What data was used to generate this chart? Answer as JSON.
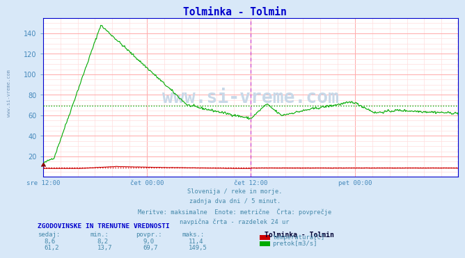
{
  "title": "Tolminka - Tolmin",
  "title_color": "#0000cc",
  "bg_color": "#d8e8f8",
  "plot_bg_color": "#ffffff",
  "grid_color_major": "#ffaaaa",
  "grid_color_minor": "#ffdddd",
  "x_labels": [
    "sre 12:00",
    "čet 00:00",
    "čet 12:00",
    "pet 00:00"
  ],
  "x_label_color": "#4488bb",
  "y_ticks": [
    20,
    40,
    60,
    80,
    100,
    120,
    140
  ],
  "ylim": [
    0,
    155
  ],
  "avg_line_value_green": 69.7,
  "avg_line_value_red": 9.0,
  "subtitle_lines": [
    "Slovenija / reke in morje.",
    "zadnja dva dni / 5 minut.",
    "Meritve: maksimalne  Enote: metrične  Črta: povprečje",
    "navpična črta - razdelek 24 ur"
  ],
  "subtitle_color": "#4488aa",
  "footer_header": "ZGODOVINSKE IN TRENUTNE VREDNOSTI",
  "footer_header_color": "#0000cc",
  "footer_cols": [
    "sedaj:",
    "min.:",
    "povpr.:",
    "maks.:"
  ],
  "footer_col_color": "#4488aa",
  "temp_row": [
    "8,6",
    "8,2",
    "9,0",
    "11,4"
  ],
  "flow_row": [
    "61,2",
    "13,7",
    "69,7",
    "149,5"
  ],
  "temp_label": "temperatura[C]",
  "flow_label": "pretok[m3/s]",
  "temp_color": "#cc0000",
  "flow_color": "#00aa00",
  "station_label": "Tolminka - Tolmin",
  "watermark": "www.si-vreme.com",
  "watermark_color": "#c8d8e8",
  "num_points": 576,
  "vline_color": "#cc44cc",
  "axis_color": "#0000cc",
  "tick_color": "#4488bb",
  "left_watermark": "www.si-vreme.com",
  "left_watermark_color": "#7799bb"
}
